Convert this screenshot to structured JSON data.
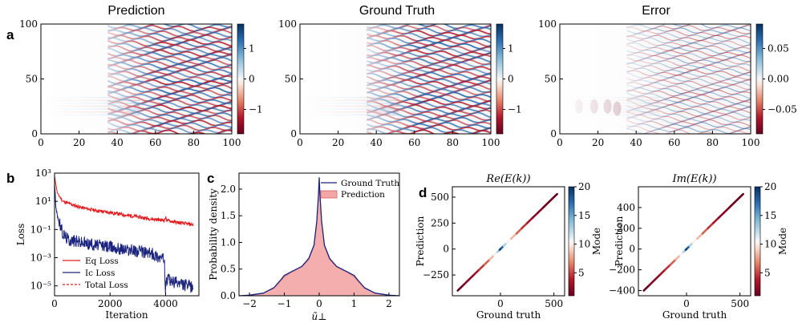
{
  "panel_labels": {
    "a": "a",
    "b": "b",
    "c": "c",
    "d": "d"
  },
  "chart_data": [
    {
      "type": "heatmap",
      "title": "Prediction",
      "xlim": [
        0,
        100
      ],
      "ylim": [
        0,
        100
      ],
      "xticks": [
        "0",
        "20",
        "40",
        "60",
        "80",
        "100"
      ],
      "yticks": [
        "0",
        "50",
        "100"
      ],
      "colorbar": {
        "ticks": [
          "1",
          "0",
          "−1"
        ],
        "tick_values": [
          1,
          0,
          -1
        ],
        "range": [
          -1.8,
          1.8
        ],
        "cmap": "RdBu"
      }
    },
    {
      "type": "heatmap",
      "title": "Ground Truth",
      "xlim": [
        0,
        100
      ],
      "ylim": [
        0,
        100
      ],
      "xticks": [
        "0",
        "20",
        "40",
        "60",
        "80",
        "100"
      ],
      "yticks": [
        "0",
        "50",
        "100"
      ],
      "colorbar": {
        "ticks": [
          "1",
          "0",
          "−1"
        ],
        "tick_values": [
          1,
          0,
          -1
        ],
        "range": [
          -1.8,
          1.8
        ],
        "cmap": "RdBu"
      }
    },
    {
      "type": "heatmap",
      "title": "Error",
      "xlim": [
        0,
        100
      ],
      "ylim": [
        0,
        100
      ],
      "xticks": [
        "0",
        "20",
        "40",
        "60",
        "80",
        "100"
      ],
      "yticks": [
        "0",
        "50",
        "100"
      ],
      "colorbar": {
        "ticks": [
          "0.05",
          "0.00",
          "−0.05"
        ],
        "tick_values": [
          0.05,
          0.0,
          -0.05
        ],
        "range": [
          -0.09,
          0.09
        ],
        "cmap": "RdBu"
      }
    },
    {
      "type": "line",
      "xlabel": "Iteration",
      "ylabel": "Loss",
      "yscale": "log",
      "xlim": [
        0,
        5200
      ],
      "ylim": [
        2e-06,
        1000
      ],
      "xticks": [
        0,
        2000,
        4000
      ],
      "xtick_labels": [
        "0",
        "2000",
        "4000"
      ],
      "yticks": [
        1000,
        10,
        0.1,
        0.001,
        1e-05
      ],
      "ytick_labels": [
        "10³",
        "10¹",
        "10⁻¹",
        "10⁻³",
        "10⁻⁵"
      ],
      "legend_position": "lower-left",
      "series": [
        {
          "name": "Eq Loss",
          "color": "#e41a1c",
          "style": "solid",
          "x": [
            0,
            100,
            300,
            600,
            1000,
            1500,
            2000,
            2500,
            3000,
            3500,
            3950,
            4000,
            4050,
            4300,
            4600,
            5000
          ],
          "y": [
            600,
            40,
            10,
            6,
            3.5,
            2.2,
            1.6,
            1.1,
            0.8,
            0.55,
            0.45,
            0.7,
            0.45,
            0.35,
            0.28,
            0.22
          ]
        },
        {
          "name": "Ic Loss",
          "color": "#1a237e",
          "style": "solid",
          "x": [
            0,
            50,
            150,
            300,
            500,
            1000,
            1500,
            2000,
            2500,
            3000,
            3500,
            3950,
            4000,
            4050,
            4200,
            4500,
            5000
          ],
          "y": [
            300,
            3,
            0.4,
            0.05,
            0.02,
            0.012,
            0.008,
            0.006,
            0.004,
            0.003,
            0.002,
            0.0008,
            5e-06,
            3e-05,
            2e-05,
            1.5e-05,
            8e-06
          ]
        },
        {
          "name": "Total Loss",
          "color": "#e41a1c",
          "style": "dashed",
          "x": [],
          "y": []
        }
      ]
    },
    {
      "type": "area",
      "xlabel": "ũ⊥",
      "ylabel": "Probability density",
      "xlim": [
        -2.3,
        2.3
      ],
      "ylim": [
        0,
        2.3
      ],
      "xticks": [
        -2,
        -1,
        0,
        1,
        2
      ],
      "yticks": [
        0.0,
        0.5,
        1.0,
        1.5,
        2.0
      ],
      "ytick_labels": [
        "0.0",
        "0.5",
        "1.0",
        "1.5",
        "2.0"
      ],
      "legend_position": "top-right",
      "series": [
        {
          "name": "Ground Truth",
          "color": "#1a237e",
          "kind": "line",
          "x": [
            -2.3,
            -2.0,
            -1.6,
            -1.3,
            -1.1,
            -1.0,
            -0.8,
            -0.5,
            -0.3,
            -0.15,
            -0.07,
            -0.02,
            0.0,
            0.02,
            0.07,
            0.15,
            0.3,
            0.5,
            0.8,
            1.0,
            1.1,
            1.3,
            1.6,
            2.0,
            2.3
          ],
          "y": [
            0,
            0.01,
            0.05,
            0.15,
            0.3,
            0.38,
            0.45,
            0.55,
            0.7,
            0.95,
            1.4,
            1.9,
            2.22,
            1.9,
            1.4,
            0.95,
            0.7,
            0.55,
            0.45,
            0.38,
            0.3,
            0.15,
            0.05,
            0.01,
            0
          ]
        },
        {
          "name": "Prediction",
          "color": "#f4a6a6",
          "kind": "fill",
          "x": [
            -2.3,
            -2.0,
            -1.6,
            -1.3,
            -1.1,
            -1.0,
            -0.8,
            -0.5,
            -0.3,
            -0.15,
            -0.07,
            -0.02,
            0.0,
            0.02,
            0.07,
            0.15,
            0.3,
            0.5,
            0.8,
            1.0,
            1.1,
            1.3,
            1.6,
            2.0,
            2.3
          ],
          "y": [
            0,
            0.01,
            0.05,
            0.14,
            0.28,
            0.36,
            0.44,
            0.54,
            0.68,
            0.93,
            1.38,
            1.88,
            2.18,
            1.88,
            1.38,
            0.93,
            0.68,
            0.54,
            0.44,
            0.36,
            0.28,
            0.14,
            0.05,
            0.01,
            0
          ]
        }
      ]
    },
    {
      "type": "scatter",
      "title": "Re(E(k))",
      "xlabel": "Ground truth",
      "ylabel": "Prediction",
      "xlim": [
        -450,
        600
      ],
      "ylim": [
        -450,
        600
      ],
      "xticks": [
        0,
        500
      ],
      "xtick_labels": [
        "0",
        "500"
      ],
      "yticks": [
        -250,
        0,
        250,
        500
      ],
      "ytick_labels": [
        "−250",
        "0",
        "250",
        "500"
      ],
      "colorbar": {
        "label": "Mode",
        "ticks": [
          "20",
          "15",
          "10",
          "5"
        ],
        "tick_values": [
          20,
          15,
          10,
          5
        ],
        "range": [
          1,
          20
        ],
        "cmap": "RdBu"
      },
      "points": {
        "x": [
          -400,
          -350,
          -300,
          -250,
          -200,
          -150,
          -100,
          -60,
          -30,
          -10,
          0,
          10,
          30,
          60,
          100,
          150,
          200,
          250,
          300,
          350,
          400,
          450,
          500,
          530
        ],
        "mode": [
          1,
          2,
          2,
          3,
          4,
          5,
          7,
          10,
          14,
          18,
          20,
          18,
          14,
          10,
          7,
          5,
          4,
          3,
          2,
          2,
          1,
          1,
          1,
          1
        ]
      }
    },
    {
      "type": "scatter",
      "title": "Im(E(k))",
      "xlabel": "Ground truth",
      "ylabel": "Prediction",
      "xlim": [
        -450,
        600
      ],
      "ylim": [
        -450,
        600
      ],
      "xticks": [
        0,
        500
      ],
      "xtick_labels": [
        "0",
        "500"
      ],
      "yticks": [
        -400,
        -200,
        0,
        200,
        400
      ],
      "ytick_labels": [
        "−400",
        "−200",
        "0",
        "200",
        "400"
      ],
      "colorbar": {
        "label": "Mode",
        "ticks": [
          "20",
          "15",
          "10",
          "5"
        ],
        "tick_values": [
          20,
          15,
          10,
          5
        ],
        "range": [
          1,
          20
        ],
        "cmap": "RdBu"
      },
      "points": {
        "x": [
          -400,
          -350,
          -300,
          -250,
          -200,
          -150,
          -100,
          -60,
          -30,
          -10,
          0,
          10,
          30,
          60,
          100,
          150,
          200,
          250,
          300,
          350,
          400,
          450,
          500,
          530
        ],
        "mode": [
          1,
          2,
          2,
          3,
          4,
          5,
          7,
          10,
          14,
          18,
          20,
          18,
          14,
          10,
          7,
          5,
          4,
          3,
          2,
          2,
          1,
          1,
          1,
          1
        ]
      }
    }
  ]
}
